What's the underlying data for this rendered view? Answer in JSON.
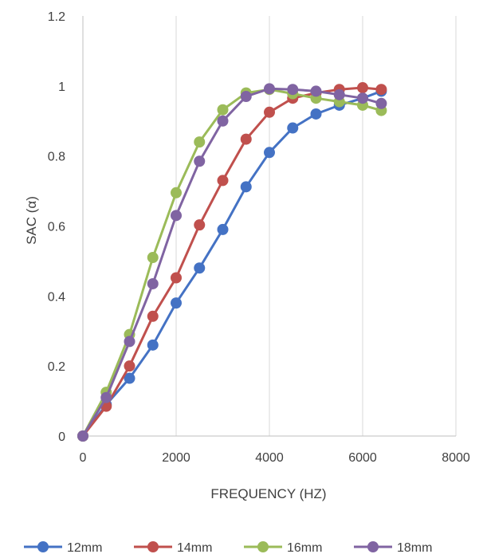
{
  "chart_data": {
    "type": "line",
    "xlabel": "FREQUENCY (HZ)",
    "ylabel": "SAC (α)",
    "xlim": [
      0,
      8000
    ],
    "ylim": [
      0,
      1.2
    ],
    "x_ticks": [
      0,
      2000,
      4000,
      6000,
      8000
    ],
    "y_ticks": [
      0,
      0.2,
      0.4,
      0.6,
      0.8,
      1,
      1.2
    ],
    "x_tick_labels": [
      "0",
      "2000",
      "4000",
      "6000",
      "8000"
    ],
    "y_tick_labels": [
      "0",
      "0.2",
      "0.4",
      "0.6",
      "0.8",
      "1",
      "1.2"
    ],
    "grid": "vertical",
    "legend_position": "bottom",
    "series": [
      {
        "name": "12mm",
        "color": "#4472c4",
        "x": [
          0,
          500,
          1000,
          1500,
          2000,
          2500,
          3000,
          3500,
          4000,
          4500,
          5000,
          5500,
          6000,
          6400
        ],
        "y": [
          0,
          0.09,
          0.165,
          0.26,
          0.38,
          0.48,
          0.59,
          0.712,
          0.81,
          0.88,
          0.92,
          0.945,
          0.965,
          0.985
        ]
      },
      {
        "name": "14mm",
        "color": "#c0504d",
        "x": [
          0,
          500,
          1000,
          1500,
          2000,
          2500,
          3000,
          3500,
          4000,
          4500,
          5000,
          5500,
          6000,
          6400
        ],
        "y": [
          0,
          0.085,
          0.2,
          0.342,
          0.452,
          0.603,
          0.73,
          0.848,
          0.925,
          0.965,
          0.98,
          0.99,
          0.995,
          0.99
        ]
      },
      {
        "name": "16mm",
        "color": "#9bbb59",
        "x": [
          0,
          500,
          1000,
          1500,
          2000,
          2500,
          3000,
          3500,
          4000,
          4500,
          5000,
          5500,
          6000,
          6400
        ],
        "y": [
          0,
          0.125,
          0.29,
          0.51,
          0.695,
          0.84,
          0.932,
          0.98,
          0.99,
          0.978,
          0.965,
          0.955,
          0.945,
          0.93
        ]
      },
      {
        "name": "18mm",
        "color": "#8064a2",
        "x": [
          0,
          500,
          1000,
          1500,
          2000,
          2500,
          3000,
          3500,
          4000,
          4500,
          5000,
          5500,
          6000,
          6400
        ],
        "y": [
          0,
          0.11,
          0.27,
          0.435,
          0.63,
          0.785,
          0.9,
          0.97,
          0.992,
          0.99,
          0.985,
          0.975,
          0.965,
          0.95
        ]
      }
    ]
  }
}
